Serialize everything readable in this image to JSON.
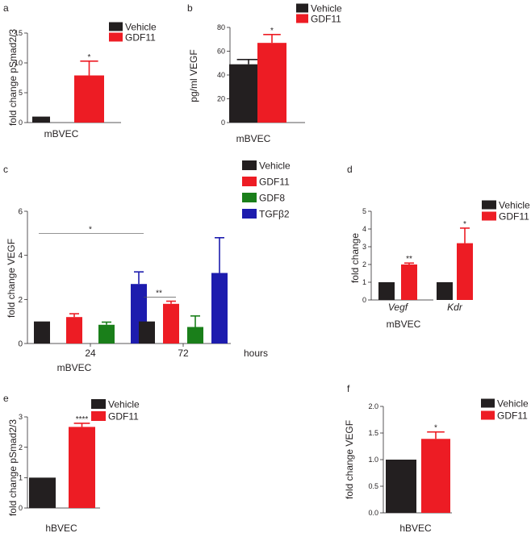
{
  "colors": {
    "vehicle": "#231f20",
    "gdf11": "#ed1c24",
    "gdf8": "#1a7f1a",
    "tgfb2": "#1d1cae",
    "axis": "#231f20"
  },
  "chart_data": [
    {
      "id": "a",
      "panel_label": "a",
      "type": "bar",
      "ylabel": "fold change pSmad2/3",
      "xlabel": "mBVEC",
      "ylim": [
        0,
        15
      ],
      "yticks": [
        "0",
        "5",
        "10",
        "15"
      ],
      "legend": [
        {
          "name": "Vehicle",
          "color": "vehicle"
        },
        {
          "name": "GDF11",
          "color": "gdf11"
        }
      ],
      "bars": [
        {
          "series": "Vehicle",
          "value": 1.0,
          "error": 0,
          "color": "vehicle"
        },
        {
          "series": "GDF11",
          "value": 7.9,
          "error": 2.4,
          "color": "gdf11",
          "sig": "*"
        }
      ]
    },
    {
      "id": "b",
      "panel_label": "b",
      "type": "bar",
      "ylabel": "pg/ml VEGF",
      "xlabel": "mBVEC",
      "ylim": [
        0,
        80
      ],
      "yticks": [
        "0",
        "20",
        "40",
        "60",
        "80"
      ],
      "legend": [
        {
          "name": "Vehicle",
          "color": "vehicle"
        },
        {
          "name": "GDF11",
          "color": "gdf11"
        }
      ],
      "bars": [
        {
          "series": "Vehicle",
          "value": 49,
          "error": 4,
          "color": "vehicle"
        },
        {
          "series": "GDF11",
          "value": 67,
          "error": 7,
          "color": "gdf11",
          "sig": "*"
        }
      ]
    },
    {
      "id": "c",
      "panel_label": "c",
      "type": "bar",
      "ylabel": "fold change VEGF",
      "xlabel": "mBVEC",
      "ylim": [
        0,
        6
      ],
      "yticks": [
        "0",
        "2",
        "4",
        "6"
      ],
      "x_unit": "hours",
      "legend": [
        {
          "name": "Vehicle",
          "color": "vehicle"
        },
        {
          "name": "GDF11",
          "color": "gdf11"
        },
        {
          "name": "GDF8",
          "color": "gdf8"
        },
        {
          "name": "TGFβ2",
          "color": "tgfb2"
        }
      ],
      "categories": [
        "24",
        "72"
      ],
      "groups": [
        {
          "category": "24",
          "bars": [
            {
              "series": "Vehicle",
              "value": 1.0,
              "error": 0,
              "color": "vehicle"
            },
            {
              "series": "GDF11",
              "value": 1.2,
              "error": 0.15,
              "color": "gdf11"
            },
            {
              "series": "GDF8",
              "value": 0.85,
              "error": 0.12,
              "color": "gdf8"
            },
            {
              "series": "TGFβ2",
              "value": 2.7,
              "error": 0.55,
              "color": "tgfb2"
            }
          ]
        },
        {
          "category": "72",
          "bars": [
            {
              "series": "Vehicle",
              "value": 1.0,
              "error": 0,
              "color": "vehicle"
            },
            {
              "series": "GDF11",
              "value": 1.8,
              "error": 0.12,
              "color": "gdf11"
            },
            {
              "series": "GDF8",
              "value": 0.75,
              "error": 0.5,
              "color": "gdf8"
            },
            {
              "series": "TGFβ2",
              "value": 3.2,
              "error": 1.6,
              "color": "tgfb2"
            }
          ]
        }
      ],
      "brackets": [
        {
          "label": "*",
          "from": [
            0,
            0
          ],
          "to": [
            0,
            3
          ],
          "y": 5.0
        },
        {
          "label": "**",
          "from": [
            1,
            0
          ],
          "to": [
            1,
            1
          ],
          "y": 2.1
        }
      ]
    },
    {
      "id": "d",
      "panel_label": "d",
      "type": "bar",
      "ylabel": "fold change",
      "xlabel": "mBVEC",
      "ylim": [
        0,
        5
      ],
      "yticks": [
        "0",
        "1",
        "2",
        "3",
        "4",
        "5"
      ],
      "legend": [
        {
          "name": "Vehicle",
          "color": "vehicle"
        },
        {
          "name": "GDF11",
          "color": "gdf11"
        }
      ],
      "categories": [
        "Vegf",
        "Kdr"
      ],
      "groups": [
        {
          "category": "Vegf",
          "bars": [
            {
              "series": "Vehicle",
              "value": 1.0,
              "error": 0,
              "color": "vehicle"
            },
            {
              "series": "GDF11",
              "value": 2.0,
              "error": 0.08,
              "color": "gdf11",
              "sig": "**"
            }
          ]
        },
        {
          "category": "Kdr",
          "bars": [
            {
              "series": "Vehicle",
              "value": 1.0,
              "error": 0,
              "color": "vehicle"
            },
            {
              "series": "GDF11",
              "value": 3.2,
              "error": 0.85,
              "color": "gdf11",
              "sig": "*"
            }
          ]
        }
      ]
    },
    {
      "id": "e",
      "panel_label": "e",
      "type": "bar",
      "ylabel": "fold change pSmad2/3",
      "xlabel": "hBVEC",
      "ylim": [
        0,
        3
      ],
      "yticks": [
        "0",
        "1",
        "2",
        "3"
      ],
      "legend": [
        {
          "name": "Vehicle",
          "color": "vehicle"
        },
        {
          "name": "GDF11",
          "color": "gdf11"
        }
      ],
      "bars": [
        {
          "series": "Vehicle",
          "value": 1.0,
          "error": 0,
          "color": "vehicle"
        },
        {
          "series": "GDF11",
          "value": 2.67,
          "error": 0.12,
          "color": "gdf11",
          "sig": "****"
        }
      ]
    },
    {
      "id": "f",
      "panel_label": "f",
      "type": "bar",
      "ylabel": "fold change VEGF",
      "xlabel": "hBVEC",
      "ylim": [
        0,
        2.0
      ],
      "yticks": [
        "0.0",
        "0.5",
        "1.0",
        "1.5",
        "2.0"
      ],
      "legend": [
        {
          "name": "Vehicle",
          "color": "vehicle"
        },
        {
          "name": "GDF11",
          "color": "gdf11"
        }
      ],
      "bars": [
        {
          "series": "Vehicle",
          "value": 1.0,
          "error": 0,
          "color": "vehicle"
        },
        {
          "series": "GDF11",
          "value": 1.39,
          "error": 0.13,
          "color": "gdf11",
          "sig": "*"
        }
      ]
    }
  ]
}
